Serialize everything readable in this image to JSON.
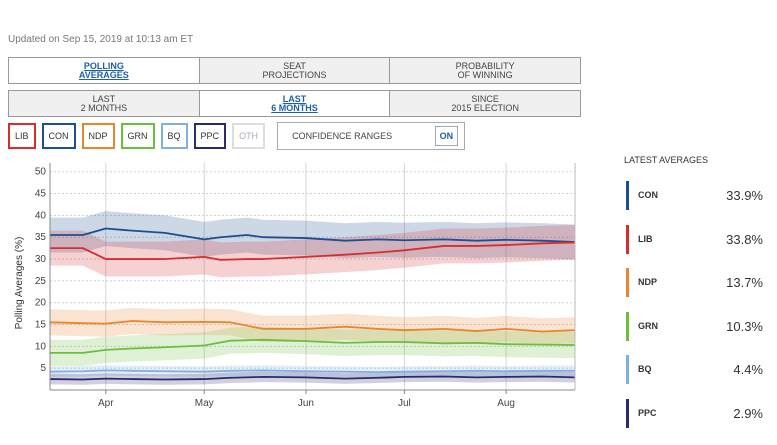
{
  "updated": "Updated on Sep 15, 2019 at 10:13 am ET",
  "tabs_row1": [
    {
      "line1": "POLLING",
      "line2": "AVERAGES",
      "active": true
    },
    {
      "line1": "SEAT",
      "line2": "PROJECTIONS",
      "active": false
    },
    {
      "line1": "PROBABILITY",
      "line2": "OF WINNING",
      "active": false
    }
  ],
  "tabs_row2": [
    {
      "line1": "LAST",
      "line2": "2 MONTHS",
      "active": false
    },
    {
      "line1": "LAST",
      "line2": "6 MONTHS",
      "active": true
    },
    {
      "line1": "SINCE",
      "line2": "2015 ELECTION",
      "active": false
    }
  ],
  "party_buttons": [
    {
      "label": "LIB",
      "color": "#d62e2e",
      "on": true
    },
    {
      "label": "CON",
      "color": "#1b4f93",
      "on": true
    },
    {
      "label": "NDP",
      "color": "#e8862d",
      "on": true
    },
    {
      "label": "GRN",
      "color": "#6cbf3c",
      "on": true
    },
    {
      "label": "BQ",
      "color": "#7fb1e0",
      "on": true
    },
    {
      "label": "PPC",
      "color": "#2a2a6e",
      "on": true
    },
    {
      "label": "OTH",
      "color": "#cccccc",
      "on": false
    }
  ],
  "confidence": {
    "label": "CONFIDENCE RANGES",
    "toggle": "ON"
  },
  "legend": {
    "title": "LATEST AVERAGES",
    "items": [
      {
        "name": "CON",
        "value": "33.9%",
        "color": "#1b4f93"
      },
      {
        "name": "LIB",
        "value": "33.8%",
        "color": "#d62e2e"
      },
      {
        "name": "NDP",
        "value": "13.7%",
        "color": "#e8862d"
      },
      {
        "name": "GRN",
        "value": "10.3%",
        "color": "#6cbf3c"
      },
      {
        "name": "BQ",
        "value": "4.4%",
        "color": "#7fb1e0"
      },
      {
        "name": "PPC",
        "value": "2.9%",
        "color": "#2a2a6e"
      }
    ]
  },
  "chart_data": {
    "type": "line",
    "ylabel": "Polling Averages (%)",
    "xlabel": "",
    "ylim": [
      0,
      52
    ],
    "yticks": [
      5,
      10,
      15,
      20,
      25,
      30,
      35,
      40,
      45,
      50
    ],
    "xlim": [
      0,
      160
    ],
    "xticks": [
      {
        "label": "Apr",
        "x": 17
      },
      {
        "label": "May",
        "x": 47
      },
      {
        "label": "Jun",
        "x": 78
      },
      {
        "label": "Jul",
        "x": 108
      },
      {
        "label": "Aug",
        "x": 139
      }
    ],
    "grid": true,
    "series": [
      {
        "name": "CON",
        "color": "#1b4f93",
        "band": 4.0,
        "x": [
          0,
          10,
          17,
          25,
          35,
          47,
          52,
          60,
          65,
          78,
          90,
          100,
          108,
          120,
          130,
          139,
          150,
          160
        ],
        "y": [
          35.5,
          35.5,
          37,
          36.5,
          36,
          34.5,
          35,
          35.5,
          35,
          34.8,
          34.2,
          34.5,
          34.3,
          34.5,
          34.2,
          34.4,
          34.2,
          33.9
        ]
      },
      {
        "name": "LIB",
        "color": "#d62e2e",
        "band": 4.0,
        "x": [
          0,
          10,
          17,
          25,
          35,
          47,
          52,
          60,
          65,
          78,
          90,
          100,
          108,
          120,
          130,
          139,
          150,
          160
        ],
        "y": [
          32.5,
          32.5,
          30,
          30,
          30,
          30.5,
          29.8,
          30,
          30,
          30.5,
          31,
          31.5,
          32,
          33,
          33,
          33.2,
          33.6,
          33.8
        ]
      },
      {
        "name": "NDP",
        "color": "#e8862d",
        "band": 3.0,
        "x": [
          0,
          10,
          17,
          25,
          35,
          47,
          55,
          65,
          78,
          90,
          100,
          108,
          120,
          130,
          139,
          150,
          160
        ],
        "y": [
          15.5,
          15.3,
          15.2,
          15.8,
          15.5,
          15.6,
          15.5,
          14,
          14,
          14.5,
          14,
          13.7,
          14,
          13.5,
          14,
          13.4,
          13.7
        ]
      },
      {
        "name": "GRN",
        "color": "#6cbf3c",
        "band": 3.0,
        "x": [
          0,
          10,
          17,
          25,
          35,
          47,
          55,
          65,
          78,
          90,
          100,
          108,
          120,
          130,
          139,
          150,
          160
        ],
        "y": [
          8.5,
          8.5,
          9.2,
          9.5,
          9.8,
          10.2,
          11.3,
          11.5,
          11.2,
          10.8,
          11,
          11,
          10.7,
          10.8,
          10.5,
          10.4,
          10.3
        ]
      },
      {
        "name": "BQ",
        "color": "#7fb1e0",
        "band": 1.2,
        "x": [
          0,
          10,
          17,
          25,
          35,
          47,
          55,
          65,
          78,
          90,
          100,
          108,
          120,
          130,
          139,
          150,
          160
        ],
        "y": [
          4.2,
          4.3,
          4.5,
          4.4,
          4.3,
          4.2,
          4.4,
          4.5,
          4.3,
          4.2,
          4.1,
          4.2,
          4.3,
          4.4,
          4.3,
          4.4,
          4.4
        ]
      },
      {
        "name": "PPC",
        "color": "#2a2a6e",
        "band": 1.2,
        "x": [
          0,
          10,
          17,
          25,
          35,
          47,
          55,
          65,
          78,
          90,
          100,
          108,
          120,
          130,
          139,
          150,
          160
        ],
        "y": [
          2.5,
          2.4,
          2.6,
          2.5,
          2.4,
          2.5,
          2.8,
          3,
          2.9,
          2.6,
          2.8,
          3,
          3.1,
          2.9,
          3,
          3.1,
          2.9
        ]
      }
    ]
  }
}
